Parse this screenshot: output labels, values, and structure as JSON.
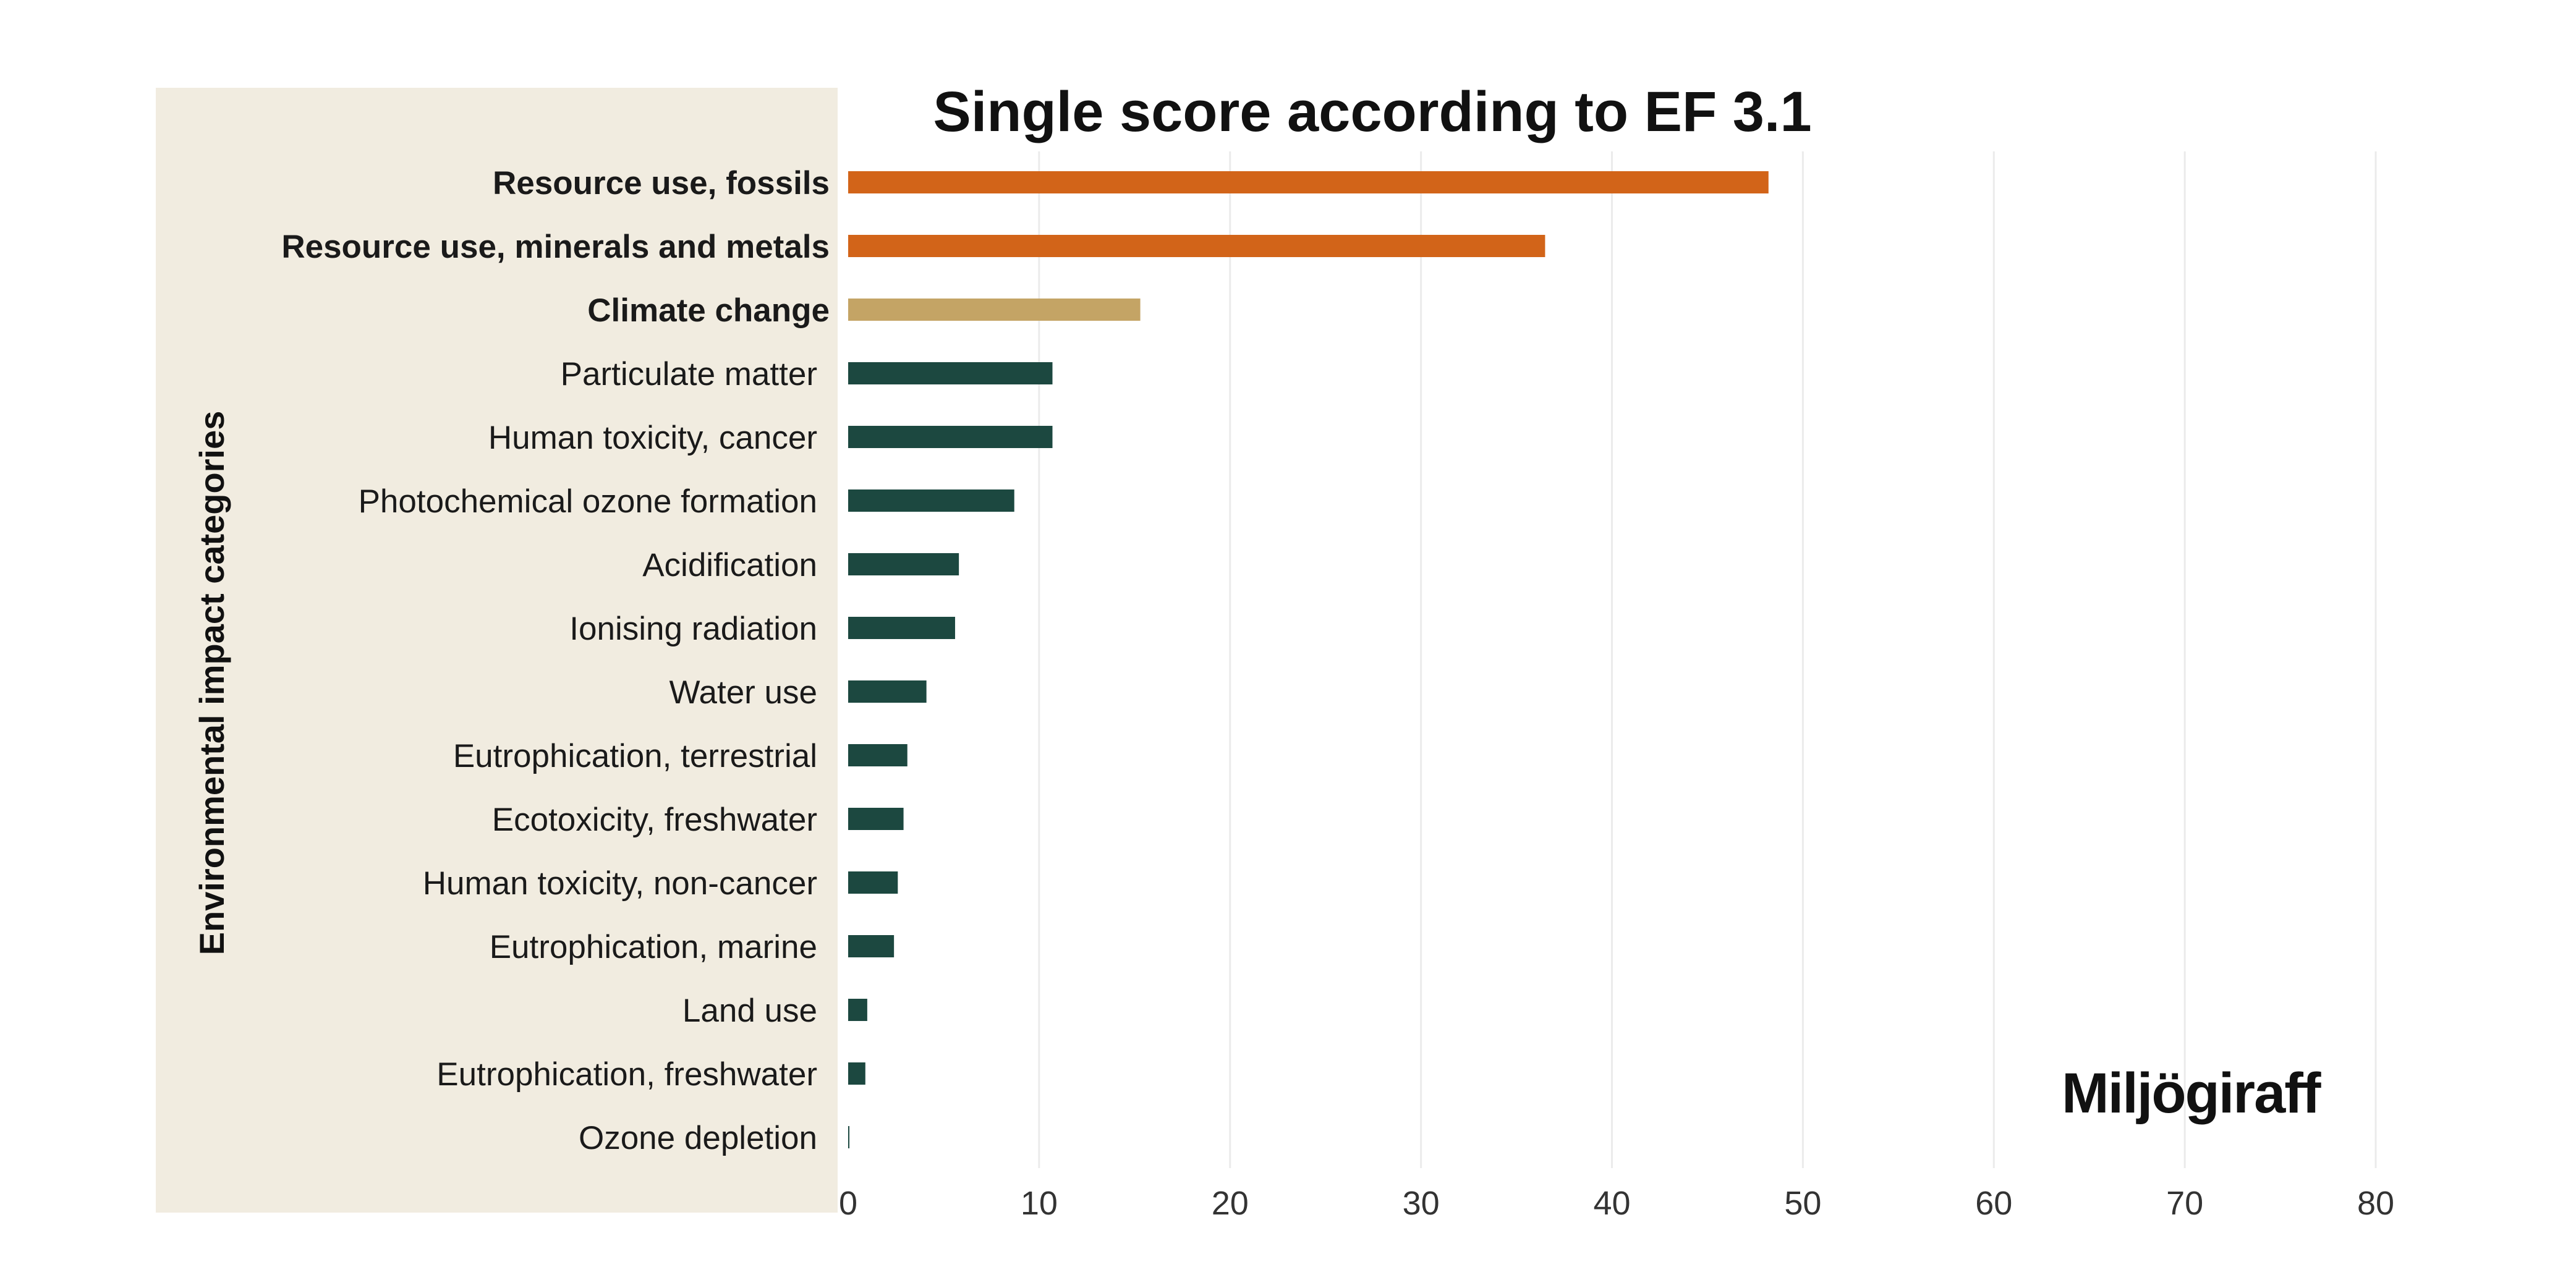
{
  "chart_data": {
    "type": "bar",
    "orientation": "horizontal",
    "title": "Single score according to EF 3.1",
    "ylabel": "Environmental impact categories",
    "xlabel": "",
    "xlim": [
      0,
      80
    ],
    "xticks": [
      0,
      10,
      20,
      30,
      40,
      50,
      60,
      70,
      80
    ],
    "grid": "vertical",
    "categories": [
      "Resource use, fossils",
      "Resource use, minerals and metals",
      "Climate change",
      "Particulate matter",
      "Human toxicity, cancer",
      "Photochemical ozone formation",
      "Acidification",
      "Ionising radiation",
      "Water use",
      "Eutrophication, terrestrial",
      "Ecotoxicity, freshwater",
      "Human toxicity, non-cancer",
      "Eutrophication, marine",
      "Land use",
      "Eutrophication, freshwater",
      "Ozone depletion"
    ],
    "values": [
      48.2,
      36.5,
      15.3,
      10.7,
      10.7,
      8.7,
      5.8,
      5.6,
      4.1,
      3.1,
      2.9,
      2.6,
      2.4,
      1.0,
      0.9,
      0.05
    ],
    "bold_labels": [
      true,
      true,
      true,
      false,
      false,
      false,
      false,
      false,
      false,
      false,
      false,
      false,
      false,
      false,
      false,
      false
    ],
    "bar_colors": [
      "#d26419",
      "#d26419",
      "#c4a465",
      "#1c4840",
      "#1c4840",
      "#1c4840",
      "#1c4840",
      "#1c4840",
      "#1c4840",
      "#1c4840",
      "#1c4840",
      "#1c4840",
      "#1c4840",
      "#1c4840",
      "#1c4840",
      "#1c4840"
    ]
  },
  "colors": {
    "panel_background": "#f1ece0",
    "gridline": "#ebebeb"
  },
  "logo": {
    "text": "Miljögiraff"
  }
}
